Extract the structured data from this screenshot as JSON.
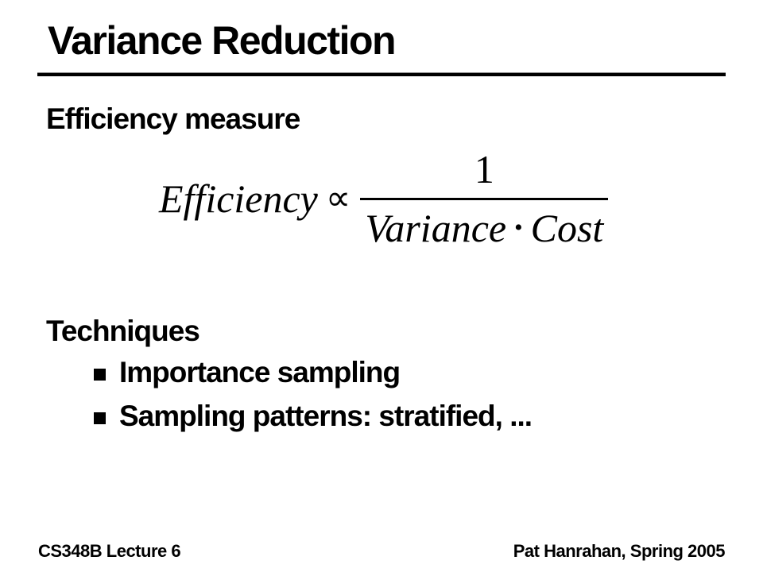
{
  "slide": {
    "title": "Variance Reduction",
    "efficiency_heading": "Efficiency measure",
    "formula": {
      "lhs": "Efficiency",
      "relation": "∝",
      "numerator": "1",
      "denominator_left": "Variance",
      "operator": "•",
      "denominator_right": "Cost"
    },
    "techniques_heading": "Techniques",
    "bullets": [
      "Importance sampling",
      "Sampling patterns: stratified, ..."
    ],
    "footer": {
      "left": "CS348B Lecture 6",
      "right": "Pat Hanrahan, Spring 2005"
    },
    "colors": {
      "text": "#000000",
      "background": "#ffffff"
    }
  }
}
